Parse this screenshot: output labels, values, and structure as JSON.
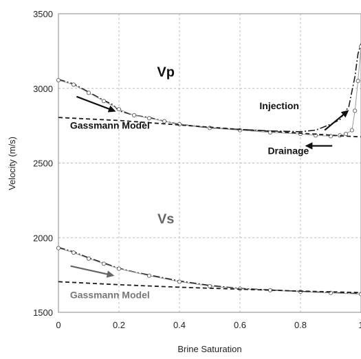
{
  "chart_data": {
    "type": "line",
    "title": "",
    "xlabel": "Brine Saturation",
    "ylabel": "Velocity (m/s)",
    "xlim": [
      0,
      1
    ],
    "ylim": [
      1500,
      3500
    ],
    "x_ticks": [
      0,
      0.2,
      0.4,
      0.6,
      0.8,
      1
    ],
    "x_tick_labels": [
      "0",
      "0.2",
      "0.4",
      "0.6",
      "0.8",
      "1"
    ],
    "y_ticks": [
      1500,
      2000,
      2500,
      3000,
      3500
    ],
    "y_tick_labels": [
      "1500",
      "2000",
      "2500",
      "3000",
      "3500"
    ],
    "grid": true,
    "series": [
      {
        "style": "dash-dot",
        "x": [
          0,
          0.05,
          0.1,
          0.15,
          0.18,
          0.2,
          0.25,
          0.3,
          0.35,
          0.4,
          0.5,
          0.6,
          0.7,
          0.8,
          0.85,
          0.9,
          0.93,
          0.96,
          0.98,
          0.99,
          1.0
        ],
        "y": [
          3060,
          3030,
          2975,
          2920,
          2890,
          2850,
          2820,
          2805,
          2780,
          2760,
          2735,
          2725,
          2715,
          2710,
          2720,
          2760,
          2790,
          2880,
          3080,
          3230,
          3300
        ]
      },
      {
        "style": "open-circles",
        "x": [
          0,
          0.05,
          0.1,
          0.15,
          0.2,
          0.25,
          0.3,
          0.35,
          0.4,
          0.5,
          0.6,
          0.7,
          0.8,
          0.85,
          0.9,
          0.93,
          0.95,
          0.97,
          0.98,
          0.99,
          1.0
        ],
        "y": [
          3055,
          3025,
          2970,
          2915,
          2860,
          2820,
          2800,
          2780,
          2760,
          2735,
          2720,
          2705,
          2695,
          2685,
          2680,
          2685,
          2695,
          2720,
          2850,
          3050,
          3280
        ]
      },
      {
        "style": "dashed",
        "x": [
          0,
          0.2,
          0.4,
          0.6,
          0.8,
          0.95,
          1.0
        ],
        "y": [
          2805,
          2785,
          2755,
          2725,
          2700,
          2680,
          2675
        ]
      },
      {
        "style": "dash-dot",
        "x": [
          0,
          0.05,
          0.1,
          0.15,
          0.2,
          0.25,
          0.3,
          0.35,
          0.4,
          0.5,
          0.6,
          0.7,
          0.8,
          0.9,
          1.0
        ],
        "y": [
          1935,
          1905,
          1865,
          1830,
          1795,
          1770,
          1750,
          1730,
          1710,
          1680,
          1660,
          1650,
          1640,
          1632,
          1625
        ]
      },
      {
        "style": "open-circles",
        "x": [
          0,
          0.05,
          0.1,
          0.15,
          0.2,
          0.3,
          0.4,
          0.5,
          0.6,
          0.7,
          0.8,
          0.9,
          1.0
        ],
        "y": [
          1930,
          1900,
          1860,
          1825,
          1792,
          1745,
          1705,
          1675,
          1658,
          1648,
          1638,
          1630,
          1622
        ]
      },
      {
        "style": "dashed",
        "x": [
          0,
          0.2,
          0.4,
          0.6,
          0.8,
          1.0
        ],
        "y": [
          1705,
          1685,
          1668,
          1655,
          1642,
          1632
        ]
      }
    ],
    "annotations": [
      {
        "text": "Vp",
        "x": 0.355,
        "y": 3080,
        "size": "big",
        "color": "#111111"
      },
      {
        "text": "Vs",
        "x": 0.355,
        "y": 2095,
        "size": "big",
        "color": "#666666"
      },
      {
        "text": "Gassmann Model",
        "x": 0.17,
        "y": 2730,
        "size": "mid",
        "color": "#111111"
      },
      {
        "text": "Gassmann Model",
        "x": 0.17,
        "y": 1595,
        "size": "mid",
        "color": "#777777"
      },
      {
        "text": "Injection",
        "x": 0.73,
        "y": 2860,
        "size": "mid",
        "color": "#111111"
      },
      {
        "text": "Drainage",
        "x": 0.76,
        "y": 2560,
        "size": "mid",
        "color": "#111111"
      }
    ],
    "arrows": [
      {
        "name": "vp-drainage-direction-arrow",
        "from": [
          0.06,
          2945
        ],
        "to": [
          0.19,
          2845
        ],
        "color": "#111111"
      },
      {
        "name": "injection-arrow",
        "from": [
          0.88,
          2720
        ],
        "to": [
          0.96,
          2855
        ],
        "color": "#111111"
      },
      {
        "name": "drainage-arrow",
        "from": [
          0.905,
          2615
        ],
        "to": [
          0.815,
          2615
        ],
        "color": "#111111"
      },
      {
        "name": "vs-direction-arrow",
        "from": [
          0.04,
          1810
        ],
        "to": [
          0.185,
          1745
        ],
        "color": "#666666"
      }
    ]
  }
}
